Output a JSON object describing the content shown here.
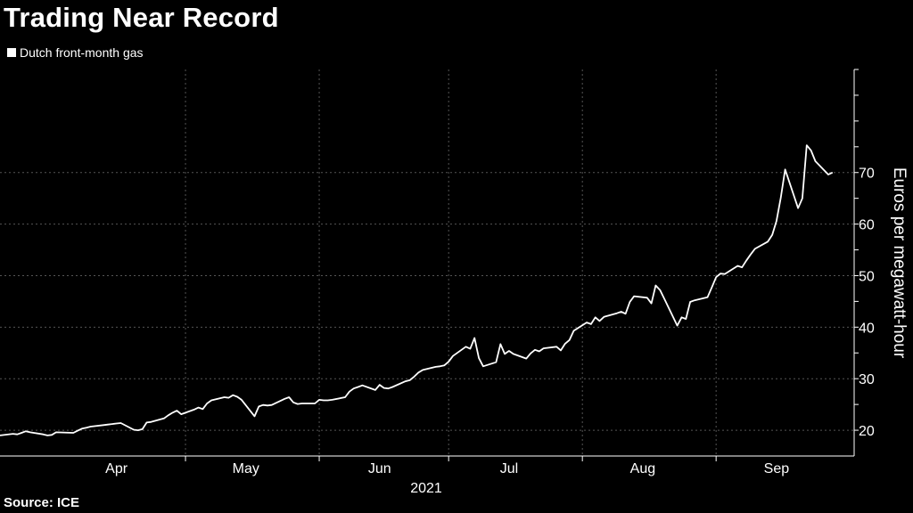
{
  "chart_data": {
    "type": "line",
    "title": "Trading Near Record",
    "legend": "Dutch front-month gas",
    "source": "Source: ICE",
    "xlabel": "2021",
    "ylabel": "Euros per megawatt-hour",
    "ylim": [
      15,
      90
    ],
    "yticks": [
      20,
      30,
      40,
      50,
      60,
      70
    ],
    "xticks": [
      {
        "label": "Apr",
        "date": "2021-04-15"
      },
      {
        "label": "May",
        "date": "2021-05-15"
      },
      {
        "label": "Jun",
        "date": "2021-06-15"
      },
      {
        "label": "Jul",
        "date": "2021-07-15"
      },
      {
        "label": "Aug",
        "date": "2021-08-15"
      },
      {
        "label": "Sep",
        "date": "2021-09-15"
      }
    ],
    "month_boundaries": [
      "2021-05-01",
      "2021-06-01",
      "2021-07-01",
      "2021-08-01",
      "2021-09-01"
    ],
    "x_range": [
      "2021-03-19",
      "2021-10-03"
    ],
    "grid": true,
    "legend_position": "top-left",
    "colors": {
      "background": "#000000",
      "line": "#ffffff",
      "grid": "#555555"
    },
    "series": [
      {
        "name": "Dutch front-month gas",
        "points": [
          [
            "2021-03-19",
            19.0
          ],
          [
            "2021-03-22",
            19.3
          ],
          [
            "2021-03-23",
            19.2
          ],
          [
            "2021-03-24",
            19.5
          ],
          [
            "2021-03-25",
            19.8
          ],
          [
            "2021-03-26",
            19.6
          ],
          [
            "2021-03-29",
            19.2
          ],
          [
            "2021-03-30",
            19.0
          ],
          [
            "2021-03-31",
            19.1
          ],
          [
            "2021-04-01",
            19.6
          ],
          [
            "2021-04-05",
            19.5
          ],
          [
            "2021-04-06",
            19.9
          ],
          [
            "2021-04-07",
            20.3
          ],
          [
            "2021-04-08",
            20.5
          ],
          [
            "2021-04-09",
            20.7
          ],
          [
            "2021-04-12",
            21.0
          ],
          [
            "2021-04-13",
            21.1
          ],
          [
            "2021-04-14",
            21.2
          ],
          [
            "2021-04-15",
            21.3
          ],
          [
            "2021-04-16",
            21.4
          ],
          [
            "2021-04-19",
            20.1
          ],
          [
            "2021-04-20",
            20.0
          ],
          [
            "2021-04-21",
            20.2
          ],
          [
            "2021-04-22",
            21.5
          ],
          [
            "2021-04-23",
            21.6
          ],
          [
            "2021-04-26",
            22.3
          ],
          [
            "2021-04-27",
            22.9
          ],
          [
            "2021-04-28",
            23.4
          ],
          [
            "2021-04-29",
            23.8
          ],
          [
            "2021-04-30",
            23.1
          ],
          [
            "2021-05-03",
            24.0
          ],
          [
            "2021-05-04",
            24.4
          ],
          [
            "2021-05-05",
            24.1
          ],
          [
            "2021-05-06",
            25.2
          ],
          [
            "2021-05-07",
            25.8
          ],
          [
            "2021-05-10",
            26.4
          ],
          [
            "2021-05-11",
            26.3
          ],
          [
            "2021-05-12",
            26.8
          ],
          [
            "2021-05-13",
            26.5
          ],
          [
            "2021-05-14",
            25.9
          ],
          [
            "2021-05-17",
            22.7
          ],
          [
            "2021-05-18",
            24.6
          ],
          [
            "2021-05-19",
            24.9
          ],
          [
            "2021-05-20",
            24.8
          ],
          [
            "2021-05-21",
            24.9
          ],
          [
            "2021-05-24",
            26.1
          ],
          [
            "2021-05-25",
            26.4
          ],
          [
            "2021-05-26",
            25.4
          ],
          [
            "2021-05-27",
            25.1
          ],
          [
            "2021-05-28",
            25.2
          ],
          [
            "2021-05-31",
            25.2
          ],
          [
            "2021-06-01",
            25.9
          ],
          [
            "2021-06-02",
            25.8
          ],
          [
            "2021-06-03",
            25.8
          ],
          [
            "2021-06-04",
            25.9
          ],
          [
            "2021-06-07",
            26.4
          ],
          [
            "2021-06-08",
            27.5
          ],
          [
            "2021-06-09",
            28.1
          ],
          [
            "2021-06-10",
            28.4
          ],
          [
            "2021-06-11",
            28.7
          ],
          [
            "2021-06-14",
            27.8
          ],
          [
            "2021-06-15",
            28.8
          ],
          [
            "2021-06-16",
            28.2
          ],
          [
            "2021-06-17",
            28.1
          ],
          [
            "2021-06-18",
            28.4
          ],
          [
            "2021-06-21",
            29.5
          ],
          [
            "2021-06-22",
            29.7
          ],
          [
            "2021-06-23",
            30.4
          ],
          [
            "2021-06-24",
            31.2
          ],
          [
            "2021-06-25",
            31.7
          ],
          [
            "2021-06-28",
            32.3
          ],
          [
            "2021-06-29",
            32.4
          ],
          [
            "2021-06-30",
            32.6
          ],
          [
            "2021-07-01",
            33.3
          ],
          [
            "2021-07-02",
            34.4
          ],
          [
            "2021-07-05",
            36.2
          ],
          [
            "2021-07-06",
            35.8
          ],
          [
            "2021-07-07",
            37.9
          ],
          [
            "2021-07-08",
            34.0
          ],
          [
            "2021-07-09",
            32.4
          ],
          [
            "2021-07-12",
            33.2
          ],
          [
            "2021-07-13",
            36.7
          ],
          [
            "2021-07-14",
            34.8
          ],
          [
            "2021-07-15",
            35.4
          ],
          [
            "2021-07-16",
            34.8
          ],
          [
            "2021-07-19",
            33.9
          ],
          [
            "2021-07-20",
            34.9
          ],
          [
            "2021-07-21",
            35.6
          ],
          [
            "2021-07-22",
            35.3
          ],
          [
            "2021-07-23",
            35.9
          ],
          [
            "2021-07-26",
            36.2
          ],
          [
            "2021-07-27",
            35.5
          ],
          [
            "2021-07-28",
            36.8
          ],
          [
            "2021-07-29",
            37.5
          ],
          [
            "2021-07-30",
            39.3
          ],
          [
            "2021-08-02",
            40.9
          ],
          [
            "2021-08-03",
            40.6
          ],
          [
            "2021-08-04",
            41.9
          ],
          [
            "2021-08-05",
            41.2
          ],
          [
            "2021-08-06",
            42.0
          ],
          [
            "2021-08-09",
            42.7
          ],
          [
            "2021-08-10",
            43.0
          ],
          [
            "2021-08-11",
            42.6
          ],
          [
            "2021-08-12",
            44.9
          ],
          [
            "2021-08-13",
            46.0
          ],
          [
            "2021-08-16",
            45.7
          ],
          [
            "2021-08-17",
            44.6
          ],
          [
            "2021-08-18",
            48.1
          ],
          [
            "2021-08-19",
            47.2
          ],
          [
            "2021-08-20",
            45.5
          ],
          [
            "2021-08-23",
            40.3
          ],
          [
            "2021-08-24",
            41.9
          ],
          [
            "2021-08-25",
            41.6
          ],
          [
            "2021-08-26",
            44.9
          ],
          [
            "2021-08-27",
            45.2
          ],
          [
            "2021-08-30",
            45.8
          ],
          [
            "2021-08-31",
            47.7
          ],
          [
            "2021-09-01",
            49.7
          ],
          [
            "2021-09-02",
            50.4
          ],
          [
            "2021-09-03",
            50.3
          ],
          [
            "2021-09-06",
            51.9
          ],
          [
            "2021-09-07",
            51.6
          ],
          [
            "2021-09-08",
            52.9
          ],
          [
            "2021-09-09",
            54.1
          ],
          [
            "2021-09-10",
            55.2
          ],
          [
            "2021-09-13",
            56.6
          ],
          [
            "2021-09-14",
            57.9
          ],
          [
            "2021-09-15",
            60.6
          ],
          [
            "2021-09-16",
            65.1
          ],
          [
            "2021-09-17",
            70.6
          ],
          [
            "2021-09-20",
            63.1
          ],
          [
            "2021-09-21",
            65.0
          ],
          [
            "2021-09-22",
            75.3
          ],
          [
            "2021-09-23",
            74.3
          ],
          [
            "2021-09-24",
            72.2
          ],
          [
            "2021-09-27",
            69.6
          ],
          [
            "2021-09-28",
            70.0
          ]
        ]
      }
    ]
  }
}
